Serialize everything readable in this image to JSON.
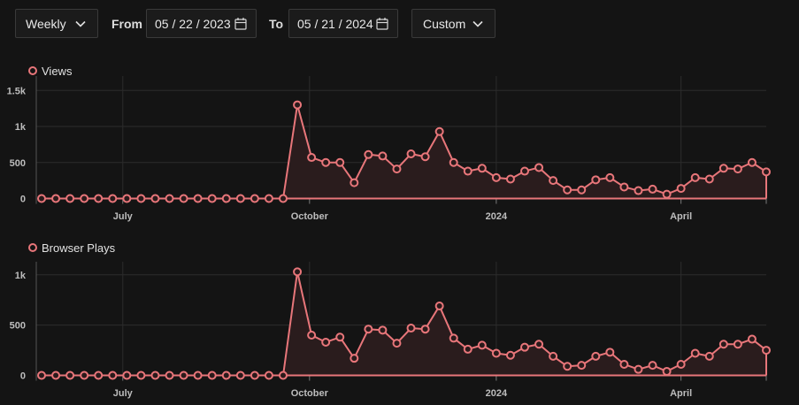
{
  "controls": {
    "interval": "Weekly",
    "from_label": "From",
    "from_date": "05 / 22 / 2023",
    "to_label": "To",
    "to_date": "05 / 21 / 2024",
    "range": "Custom"
  },
  "colors": {
    "series": "#e8767a",
    "fill": "#2a1c1d",
    "grid": "#2c2c2c",
    "axis": "#bdbdbd"
  },
  "chart_data": [
    {
      "type": "area",
      "legend": "Views",
      "x_tick_labels": [
        "July",
        "October",
        "2024",
        "April"
      ],
      "y_tick_labels": [
        "0",
        "500",
        "1k",
        "1.5k"
      ],
      "y_ticks": [
        0,
        500,
        1000,
        1500
      ],
      "ylim": [
        0,
        1700
      ],
      "x_start": "2023-05-22",
      "x_step_days": 7,
      "x_tick_dates": [
        "2023-07-01",
        "2023-10-01",
        "2024-01-01",
        "2024-04-01"
      ],
      "values": [
        0,
        0,
        0,
        0,
        0,
        0,
        0,
        0,
        0,
        0,
        0,
        0,
        0,
        0,
        0,
        0,
        0,
        0,
        1300,
        570,
        500,
        500,
        220,
        610,
        590,
        410,
        620,
        580,
        930,
        500,
        380,
        420,
        290,
        270,
        380,
        430,
        250,
        120,
        120,
        260,
        290,
        160,
        110,
        130,
        60,
        140,
        290,
        270,
        420,
        410,
        500,
        370
      ]
    },
    {
      "type": "area",
      "legend": "Browser Plays",
      "x_tick_labels": [
        "July",
        "October",
        "2024",
        "April"
      ],
      "y_tick_labels": [
        "0",
        "500",
        "1k"
      ],
      "y_ticks": [
        0,
        500,
        1000
      ],
      "ylim": [
        0,
        1130
      ],
      "x_start": "2023-05-22",
      "x_step_days": 7,
      "x_tick_dates": [
        "2023-07-01",
        "2023-10-01",
        "2024-01-01",
        "2024-04-01"
      ],
      "values": [
        0,
        0,
        0,
        0,
        0,
        0,
        0,
        0,
        0,
        0,
        0,
        0,
        0,
        0,
        0,
        0,
        0,
        0,
        1030,
        400,
        330,
        380,
        170,
        460,
        450,
        320,
        470,
        460,
        690,
        370,
        260,
        300,
        220,
        200,
        280,
        310,
        190,
        90,
        100,
        190,
        230,
        110,
        60,
        100,
        40,
        110,
        220,
        190,
        310,
        310,
        360,
        250
      ]
    }
  ]
}
